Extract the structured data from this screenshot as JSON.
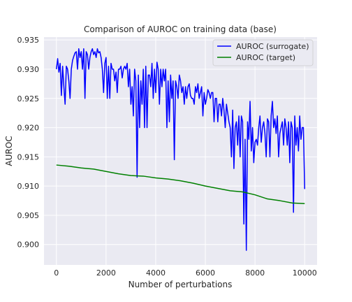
{
  "chart_data": {
    "type": "line",
    "title": "Comparison of AUROC on training data (base)",
    "xlabel": "Number of perturbations",
    "ylabel": "AUROC",
    "xlim": [
      -500,
      10500
    ],
    "ylim": [
      0.8965,
      0.9355
    ],
    "x_ticks": [
      0,
      2000,
      4000,
      6000,
      8000,
      10000
    ],
    "y_ticks": [
      0.9,
      0.905,
      0.91,
      0.915,
      0.92,
      0.925,
      0.93,
      0.935
    ],
    "grid": true,
    "legend_position": "top-right",
    "series": [
      {
        "name": "AUROC (surrogate)",
        "color": "#0000ff",
        "x": [
          0,
          50,
          100,
          150,
          200,
          250,
          300,
          350,
          400,
          450,
          500,
          550,
          600,
          650,
          700,
          750,
          800,
          850,
          900,
          950,
          1000,
          1050,
          1100,
          1150,
          1200,
          1250,
          1300,
          1350,
          1400,
          1450,
          1500,
          1550,
          1600,
          1650,
          1700,
          1750,
          1800,
          1850,
          1900,
          1950,
          2000,
          2050,
          2100,
          2150,
          2200,
          2250,
          2300,
          2350,
          2400,
          2450,
          2500,
          2550,
          2600,
          2650,
          2700,
          2750,
          2800,
          2850,
          2900,
          2950,
          3000,
          3050,
          3100,
          3150,
          3200,
          3250,
          3300,
          3350,
          3400,
          3450,
          3500,
          3550,
          3600,
          3650,
          3700,
          3750,
          3800,
          3850,
          3900,
          3950,
          4000,
          4050,
          4100,
          4150,
          4200,
          4250,
          4300,
          4350,
          4400,
          4450,
          4500,
          4550,
          4600,
          4650,
          4700,
          4750,
          4800,
          4850,
          4900,
          4950,
          5000,
          5050,
          5100,
          5150,
          5200,
          5250,
          5300,
          5350,
          5400,
          5450,
          5500,
          5550,
          5600,
          5650,
          5700,
          5750,
          5800,
          5850,
          5900,
          5950,
          6000,
          6050,
          6100,
          6150,
          6200,
          6250,
          6300,
          6350,
          6400,
          6450,
          6500,
          6550,
          6600,
          6650,
          6700,
          6750,
          6800,
          6850,
          6900,
          6950,
          7000,
          7050,
          7100,
          7150,
          7200,
          7250,
          7300,
          7350,
          7400,
          7450,
          7500,
          7550,
          7600,
          7650,
          7700,
          7750,
          7800,
          7850,
          7900,
          7950,
          8000,
          8050,
          8100,
          8150,
          8200,
          8250,
          8300,
          8350,
          8400,
          8450,
          8500,
          8550,
          8600,
          8650,
          8700,
          8750,
          8800,
          8850,
          8900,
          8950,
          9000,
          9050,
          9100,
          9150,
          9200,
          9250,
          9300,
          9350,
          9400,
          9450,
          9500,
          9550,
          9600,
          9650,
          9700,
          9750,
          9800,
          9850,
          9900,
          9950,
          10000
        ],
        "y": [
          0.93,
          0.9318,
          0.9295,
          0.931,
          0.9255,
          0.9305,
          0.927,
          0.924,
          0.9305,
          0.93,
          0.928,
          0.925,
          0.93,
          0.9315,
          0.9322,
          0.9328,
          0.933,
          0.93,
          0.9335,
          0.932,
          0.933,
          0.93,
          0.9335,
          0.925,
          0.933,
          0.9325,
          0.93,
          0.932,
          0.933,
          0.9335,
          0.9325,
          0.933,
          0.932,
          0.9335,
          0.9328,
          0.933,
          0.932,
          0.93,
          0.926,
          0.931,
          0.932,
          0.925,
          0.9305,
          0.925,
          0.931,
          0.93,
          0.93,
          0.928,
          0.9295,
          0.926,
          0.93,
          0.93,
          0.9305,
          0.9285,
          0.93,
          0.9305,
          0.93,
          0.931,
          0.927,
          0.93,
          0.924,
          0.927,
          0.922,
          0.93,
          0.928,
          0.9115,
          0.929,
          0.92,
          0.928,
          0.924,
          0.93,
          0.92,
          0.9305,
          0.92,
          0.929,
          0.929,
          0.927,
          0.931,
          0.925,
          0.93,
          0.926,
          0.9312,
          0.93,
          0.924,
          0.93,
          0.927,
          0.93,
          0.928,
          0.93,
          0.92,
          0.928,
          0.921,
          0.929,
          0.925,
          0.928,
          0.9145,
          0.928,
          0.927,
          0.925,
          0.929,
          0.928,
          0.926,
          0.927,
          0.924,
          0.927,
          0.925,
          0.927,
          0.9275,
          0.9255,
          0.925,
          0.925,
          0.924,
          0.927,
          0.926,
          0.9275,
          0.925,
          0.926,
          0.927,
          0.922,
          0.926,
          0.924,
          0.925,
          0.9265,
          0.926,
          0.925,
          0.926,
          0.926,
          0.921,
          0.925,
          0.925,
          0.921,
          0.924,
          0.924,
          0.922,
          0.925,
          0.923,
          0.92,
          0.924,
          0.9225,
          0.921,
          0.92,
          0.915,
          0.923,
          0.913,
          0.92,
          0.921,
          0.917,
          0.922,
          0.915,
          0.922,
          0.921,
          0.9035,
          0.918,
          0.899,
          0.921,
          0.918,
          0.9245,
          0.916,
          0.92,
          0.914,
          0.9175,
          0.918,
          0.917,
          0.92,
          0.922,
          0.9175,
          0.92,
          0.921,
          0.919,
          0.915,
          0.9215,
          0.921,
          0.915,
          0.922,
          0.9245,
          0.92,
          0.9215,
          0.919,
          0.922,
          0.915,
          0.919,
          0.92,
          0.921,
          0.917,
          0.9215,
          0.92,
          0.917,
          0.921,
          0.914,
          0.921,
          0.92,
          0.9055,
          0.922,
          0.917,
          0.92,
          0.916,
          0.922,
          0.918,
          0.92,
          0.92,
          0.9095
        ]
      },
      {
        "name": "AUROC (target)",
        "color": "#008000",
        "x": [
          0,
          500,
          1000,
          1500,
          2000,
          2500,
          3000,
          3500,
          4000,
          4500,
          5000,
          5500,
          6000,
          6500,
          7000,
          7500,
          8000,
          8500,
          9000,
          9500,
          10000
        ],
        "y": [
          0.9136,
          0.9134,
          0.9131,
          0.9129,
          0.9125,
          0.9121,
          0.9118,
          0.9117,
          0.9114,
          0.9112,
          0.9109,
          0.9105,
          0.91,
          0.9096,
          0.9092,
          0.909,
          0.9085,
          0.9078,
          0.9075,
          0.9071,
          0.907
        ]
      }
    ]
  }
}
